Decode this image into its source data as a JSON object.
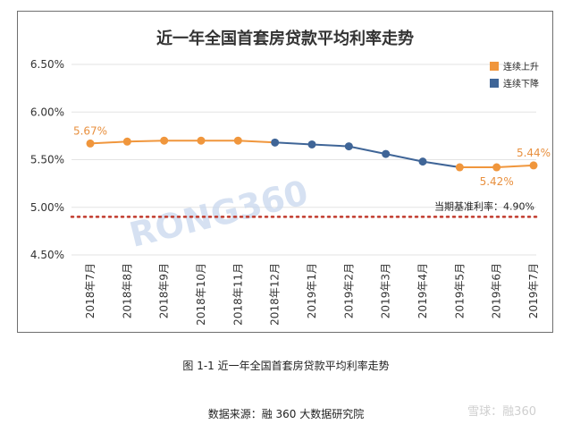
{
  "chart_data": {
    "type": "line",
    "title": "近一年全国首套房贷款平均利率走势",
    "categories": [
      "2018年7月",
      "2018年8月",
      "2018年9月",
      "2018年10月",
      "2018年11月",
      "2018年12月",
      "2019年1月",
      "2019年2月",
      "2019年3月",
      "2019年4月",
      "2019年5月",
      "2019年6月",
      "2019年7月"
    ],
    "values": [
      5.67,
      5.69,
      5.7,
      5.7,
      5.7,
      5.68,
      5.66,
      5.64,
      5.56,
      5.48,
      5.42,
      5.42,
      5.44
    ],
    "segments": [
      {
        "name": "连续上升",
        "color": "#f0963c",
        "from": 0,
        "to": 5
      },
      {
        "name": "连续下降",
        "color": "#3f6597",
        "from": 5,
        "to": 10
      },
      {
        "name": "连续上升",
        "color": "#f0963c",
        "from": 10,
        "to": 12
      }
    ],
    "legend": [
      {
        "label": "连续上升",
        "color": "#f0963c"
      },
      {
        "label": "连续下降",
        "color": "#3f6597"
      }
    ],
    "legend_position": "top-right",
    "yticks": [
      "6.50%",
      "6.00%",
      "5.50%",
      "5.00%",
      "4.50%"
    ],
    "ytick_values": [
      6.5,
      6.0,
      5.5,
      5.0,
      4.5
    ],
    "ylim": [
      4.5,
      6.5
    ],
    "grid": "horizontal",
    "data_labels": [
      {
        "index": 0,
        "text": "5.67%",
        "placement": "above"
      },
      {
        "index": 11,
        "text": "5.42%",
        "placement": "below"
      },
      {
        "index": 12,
        "text": "5.44%",
        "placement": "above"
      }
    ],
    "reference_line": {
      "value": 4.9,
      "label": "当期基准利率：4.90%",
      "color": "#c0392b"
    },
    "watermark": "RONG360"
  },
  "caption": "图 1-1  近一年全国首套房贷款平均利率走势",
  "source": "数据来源：融 360 大数据研究院",
  "corner_watermark": "雪球：融360"
}
